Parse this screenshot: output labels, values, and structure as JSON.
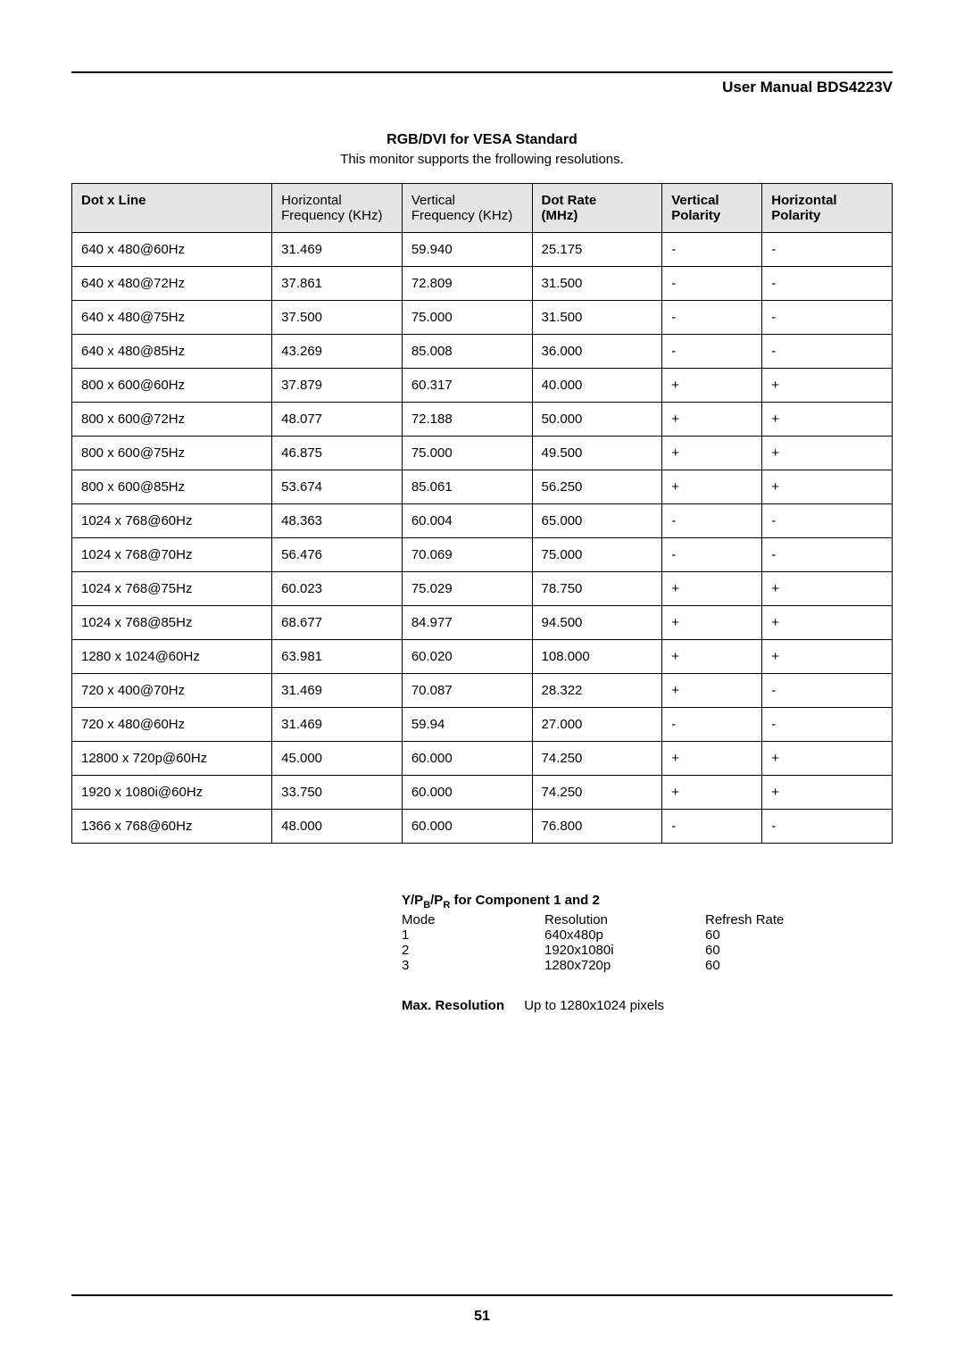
{
  "header": {
    "title": "User Manual BDS4223V"
  },
  "section1": {
    "title": "RGB/DVI for VESA Standard",
    "subtitle": "This monitor supports the frollowing resolutions."
  },
  "table": {
    "columns": [
      {
        "label": "Dot x Line",
        "bold": true
      },
      {
        "label_line1": "Horizontal",
        "label_line2": "Frequency (KHz)",
        "bold": false
      },
      {
        "label_line1": "Vertical",
        "label_line2": "Frequency (KHz)",
        "bold": false
      },
      {
        "label_line1": "Dot Rate",
        "label_line2": "(MHz)",
        "bold": true
      },
      {
        "label_line1": "Vertical",
        "label_line2": "Polarity",
        "bold": true
      },
      {
        "label_line1": "Horizontal",
        "label_line2": "Polarity",
        "bold": true
      }
    ],
    "rows": [
      [
        "640 x 480@60Hz",
        "31.469",
        "59.940",
        "25.175",
        "-",
        "-"
      ],
      [
        "640 x 480@72Hz",
        "37.861",
        "72.809",
        "31.500",
        "-",
        "-"
      ],
      [
        "640 x 480@75Hz",
        "37.500",
        "75.000",
        "31.500",
        "-",
        "-"
      ],
      [
        "640 x 480@85Hz",
        "43.269",
        "85.008",
        "36.000",
        "-",
        "-"
      ],
      [
        "800 x 600@60Hz",
        "37.879",
        "60.317",
        "40.000",
        "+",
        "+"
      ],
      [
        "800 x 600@72Hz",
        "48.077",
        "72.188",
        "50.000",
        "+",
        "+"
      ],
      [
        "800 x 600@75Hz",
        "46.875",
        "75.000",
        "49.500",
        "+",
        "+"
      ],
      [
        "800 x 600@85Hz",
        "53.674",
        "85.061",
        "56.250",
        "+",
        "+"
      ],
      [
        "1024 x 768@60Hz",
        "48.363",
        "60.004",
        "65.000",
        "-",
        "-"
      ],
      [
        "1024 x 768@70Hz",
        "56.476",
        "70.069",
        "75.000",
        "-",
        "-"
      ],
      [
        "1024 x 768@75Hz",
        "60.023",
        "75.029",
        "78.750",
        "+",
        "+"
      ],
      [
        "1024 x 768@85Hz",
        "68.677",
        "84.977",
        "94.500",
        "+",
        "+"
      ],
      [
        "1280 x 1024@60Hz",
        "63.981",
        "60.020",
        "108.000",
        "+",
        "+"
      ],
      [
        "720 x 400@70Hz",
        "31.469",
        "70.087",
        "28.322",
        "+",
        "-"
      ],
      [
        "720 x 480@60Hz",
        "31.469",
        "59.94",
        "27.000",
        "-",
        "-"
      ],
      [
        "12800 x 720p@60Hz",
        "45.000",
        "60.000",
        "74.250",
        "+",
        "+"
      ],
      [
        "1920 x 1080i@60Hz",
        "33.750",
        "60.000",
        "74.250",
        "+",
        "+"
      ],
      [
        "1366 x 768@60Hz",
        "48.000",
        "60.000",
        "76.800",
        "-",
        "-"
      ]
    ]
  },
  "component": {
    "title_prefix": "Y/P",
    "title_sub1": "B",
    "title_mid": "/P",
    "title_sub2": "R",
    "title_suffix": " for Component 1 and 2",
    "headers": [
      "Mode",
      "Resolution",
      "Refresh Rate"
    ],
    "rows": [
      [
        "1",
        "640x480p",
        "60"
      ],
      [
        "2",
        "1920x1080i",
        "60"
      ],
      [
        "3",
        "1280x720p",
        "60"
      ]
    ]
  },
  "maxres": {
    "label": "Max. Resolution",
    "value": "Up to 1280x1024 pixels"
  },
  "page_number": "51"
}
